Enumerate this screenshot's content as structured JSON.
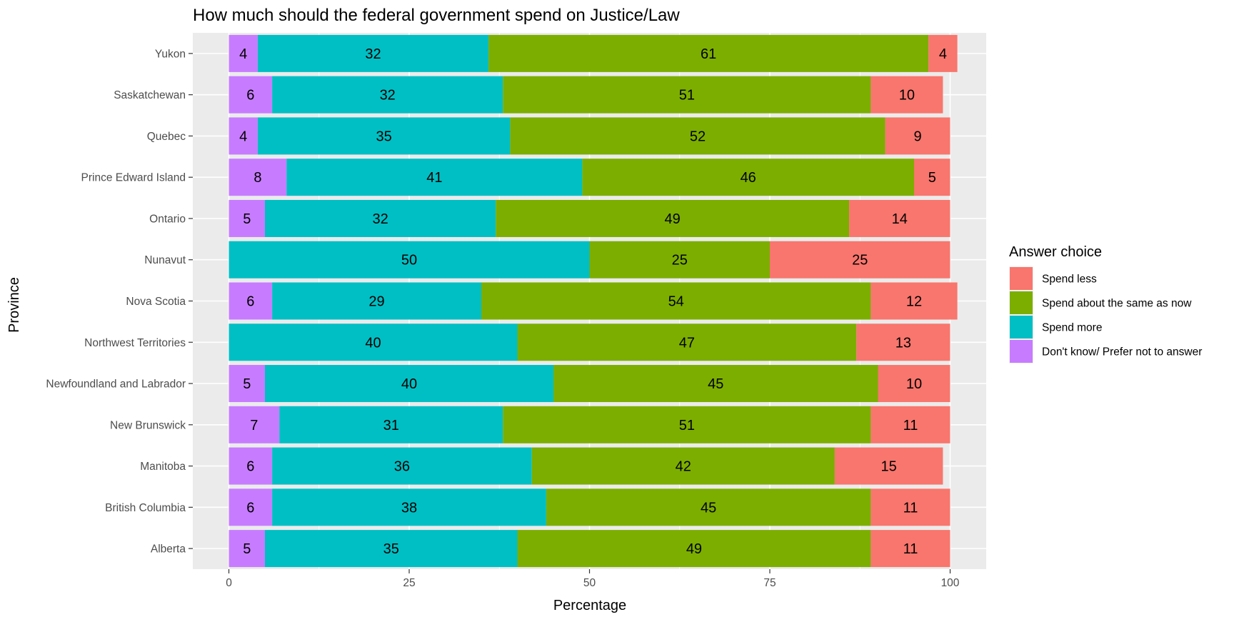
{
  "chart_data": {
    "type": "bar",
    "orientation": "horizontal",
    "stacked": true,
    "title": "How much should the federal government spend on Justice/Law",
    "xlabel": "Percentage",
    "ylabel": "Province",
    "xlim": [
      0,
      100
    ],
    "x_ticks": [
      0,
      25,
      50,
      75,
      100
    ],
    "grid": true,
    "legend": {
      "title": "Answer choice",
      "position": "right"
    },
    "categories": [
      "Yukon",
      "Saskatchewan",
      "Quebec",
      "Prince Edward Island",
      "Ontario",
      "Nunavut",
      "Nova Scotia",
      "Northwest Territories",
      "Newfoundland and Labrador",
      "New Brunswick",
      "Manitoba",
      "British Columbia",
      "Alberta"
    ],
    "series": [
      {
        "name": "Don't know/ Prefer not to answer",
        "color": "#C77CFF",
        "values": [
          4,
          6,
          4,
          8,
          5,
          0,
          6,
          0,
          5,
          7,
          6,
          6,
          5
        ]
      },
      {
        "name": "Spend more",
        "color": "#00BFC4",
        "values": [
          32,
          32,
          35,
          41,
          32,
          50,
          29,
          40,
          40,
          31,
          36,
          38,
          35
        ]
      },
      {
        "name": "Spend about the same as now",
        "color": "#7CAE00",
        "values": [
          61,
          51,
          52,
          46,
          49,
          25,
          54,
          47,
          45,
          51,
          42,
          45,
          49
        ]
      },
      {
        "name": "Spend less",
        "color": "#F8766D",
        "values": [
          4,
          10,
          9,
          5,
          14,
          25,
          12,
          13,
          10,
          11,
          15,
          11,
          11
        ]
      }
    ],
    "legend_order": [
      "Spend less",
      "Spend about the same as now",
      "Spend more",
      "Don't know/ Prefer not to answer"
    ],
    "panel_background": "#EBEBEB"
  }
}
